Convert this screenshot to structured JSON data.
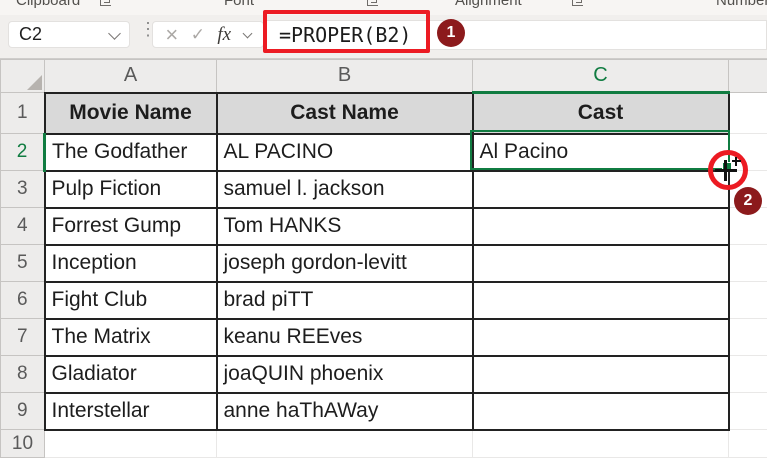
{
  "ribbon": {
    "groups": [
      "Clipboard",
      "Font",
      "Alignment",
      "Number"
    ]
  },
  "formula_bar": {
    "name_box": "C2",
    "cancel_icon": "×",
    "enter_icon": "✓",
    "fx_label": "fx",
    "formula": "=PROPER(B2)"
  },
  "annotations": {
    "step1": "1",
    "step2": "2",
    "highlight_color": "#EC1B23",
    "badge_color": "#8C1A1C"
  },
  "grid": {
    "column_headers": [
      "A",
      "B",
      "C"
    ],
    "selected_column": "C",
    "selected_row": "2",
    "selected_cell": "C2",
    "accent_green": "#107C41",
    "row_numbers": [
      "1",
      "2",
      "3",
      "4",
      "5",
      "6",
      "7",
      "8",
      "9",
      "10"
    ],
    "header_row": [
      "Movie Name",
      "Cast Name",
      "Cast"
    ],
    "rows": [
      [
        "The Godfather",
        "AL PACINO",
        "Al Pacino"
      ],
      [
        "Pulp Fiction",
        "samuel l. jackson",
        ""
      ],
      [
        "Forrest Gump",
        "Tom HANKS",
        ""
      ],
      [
        "Inception",
        "joseph gordon-levitt",
        ""
      ],
      [
        "Fight Club",
        "brad piTT",
        ""
      ],
      [
        "The Matrix",
        "keanu REEves",
        ""
      ],
      [
        "Gladiator",
        "joaQUIN phoenix",
        ""
      ],
      [
        "Interstellar",
        "anne haThAWay",
        ""
      ]
    ]
  }
}
